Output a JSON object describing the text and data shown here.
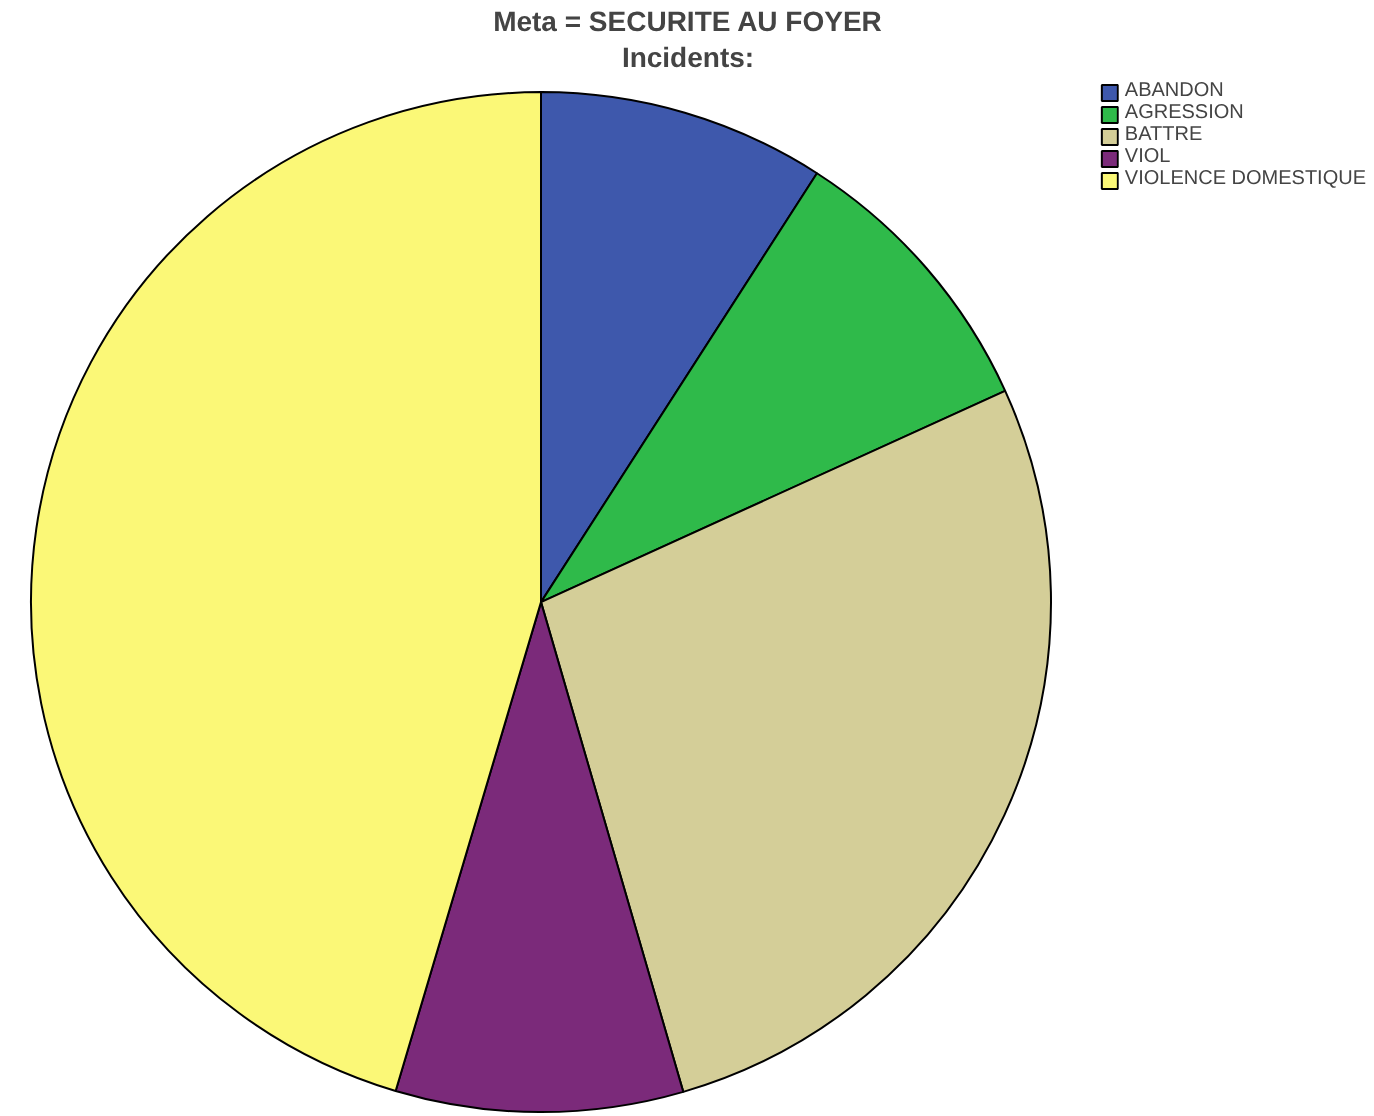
{
  "chart_data": {
    "type": "pie",
    "title": "Meta = SECURITE AU FOYER",
    "subtitle": "Incidents:",
    "categories": [
      "ABANDON",
      "AGRESSION",
      "BATTRE",
      "VIOL",
      "VIOLENCE DOMESTIQUE"
    ],
    "values": [
      9.1,
      9.1,
      27.3,
      9.1,
      45.4
    ],
    "colors": [
      "#3e58ac",
      "#2fba4a",
      "#d4ce98",
      "#7b2a7a",
      "#fbf877"
    ],
    "legend": "top right"
  }
}
